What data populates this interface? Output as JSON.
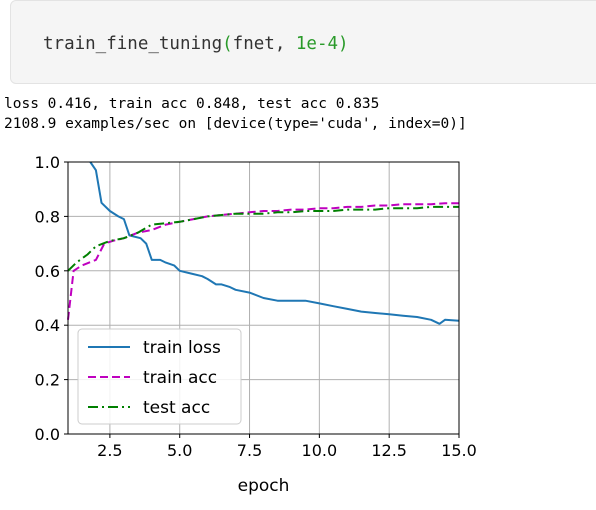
{
  "code": {
    "func": "train_fine_tuning",
    "open": "(",
    "arg1": "fnet, ",
    "arg2": "1e-4",
    "close": ")"
  },
  "output": {
    "line1": "loss 0.416, train acc 0.848, test acc 0.835",
    "line2": "2108.9 examples/sec on [device(type='cuda', index=0)]"
  },
  "colors": {
    "train_loss": "#1f77b4",
    "train_acc": "#bf00bf",
    "test_acc": "#008000"
  },
  "chart_data": {
    "type": "line",
    "xlabel": "epoch",
    "ylabel": "",
    "xlim": [
      1,
      15
    ],
    "ylim": [
      0.0,
      1.0
    ],
    "xticks": [
      "2.5",
      "5.0",
      "7.5",
      "10.0",
      "12.5",
      "15.0"
    ],
    "yticks": [
      "0.0",
      "0.2",
      "0.4",
      "0.6",
      "0.8",
      "1.0"
    ],
    "grid": true,
    "legend_position": "lower-left",
    "series": [
      {
        "name": "train loss",
        "style": "solid",
        "x": [
          1.8,
          2.0,
          2.2,
          2.5,
          2.8,
          3.0,
          3.2,
          3.6,
          3.8,
          4.0,
          4.3,
          4.5,
          4.8,
          5.0,
          5.4,
          5.8,
          6.0,
          6.3,
          6.5,
          6.8,
          7.0,
          7.5,
          8.0,
          8.5,
          9.0,
          9.5,
          10.0,
          10.5,
          11.0,
          11.5,
          12.0,
          12.5,
          13.0,
          13.5,
          14.0,
          14.3,
          14.5,
          15.0
        ],
        "y": [
          1.0,
          0.97,
          0.85,
          0.82,
          0.8,
          0.79,
          0.73,
          0.72,
          0.7,
          0.64,
          0.64,
          0.63,
          0.62,
          0.6,
          0.59,
          0.58,
          0.57,
          0.55,
          0.55,
          0.54,
          0.53,
          0.52,
          0.5,
          0.49,
          0.49,
          0.49,
          0.48,
          0.47,
          0.46,
          0.45,
          0.445,
          0.44,
          0.435,
          0.43,
          0.42,
          0.405,
          0.42,
          0.416
        ]
      },
      {
        "name": "train acc",
        "style": "dashed",
        "x": [
          1.0,
          1.2,
          1.5,
          2.0,
          2.3,
          2.6,
          3.0,
          3.5,
          4.0,
          4.5,
          5.0,
          5.5,
          6.0,
          6.5,
          7.0,
          7.5,
          8.0,
          8.5,
          9.0,
          9.5,
          10.0,
          10.5,
          11.0,
          11.5,
          12.0,
          12.5,
          13.0,
          13.5,
          14.0,
          14.5,
          15.0
        ],
        "y": [
          0.42,
          0.6,
          0.62,
          0.64,
          0.7,
          0.71,
          0.72,
          0.74,
          0.75,
          0.77,
          0.78,
          0.79,
          0.8,
          0.805,
          0.81,
          0.815,
          0.82,
          0.82,
          0.825,
          0.825,
          0.83,
          0.83,
          0.835,
          0.835,
          0.84,
          0.84,
          0.845,
          0.845,
          0.845,
          0.848,
          0.848
        ]
      },
      {
        "name": "test acc",
        "style": "dashdot",
        "x": [
          1.0,
          1.3,
          1.7,
          2.0,
          2.5,
          3.0,
          3.5,
          4.0,
          4.5,
          5.0,
          5.5,
          6.0,
          6.5,
          7.0,
          7.5,
          8.0,
          8.5,
          9.0,
          9.5,
          10.0,
          10.5,
          11.0,
          11.5,
          12.0,
          12.5,
          13.0,
          13.5,
          14.0,
          14.5,
          15.0
        ],
        "y": [
          0.6,
          0.63,
          0.66,
          0.69,
          0.71,
          0.72,
          0.74,
          0.77,
          0.775,
          0.78,
          0.79,
          0.8,
          0.805,
          0.81,
          0.81,
          0.81,
          0.815,
          0.815,
          0.82,
          0.82,
          0.82,
          0.825,
          0.825,
          0.825,
          0.83,
          0.83,
          0.83,
          0.835,
          0.835,
          0.835
        ]
      }
    ]
  }
}
